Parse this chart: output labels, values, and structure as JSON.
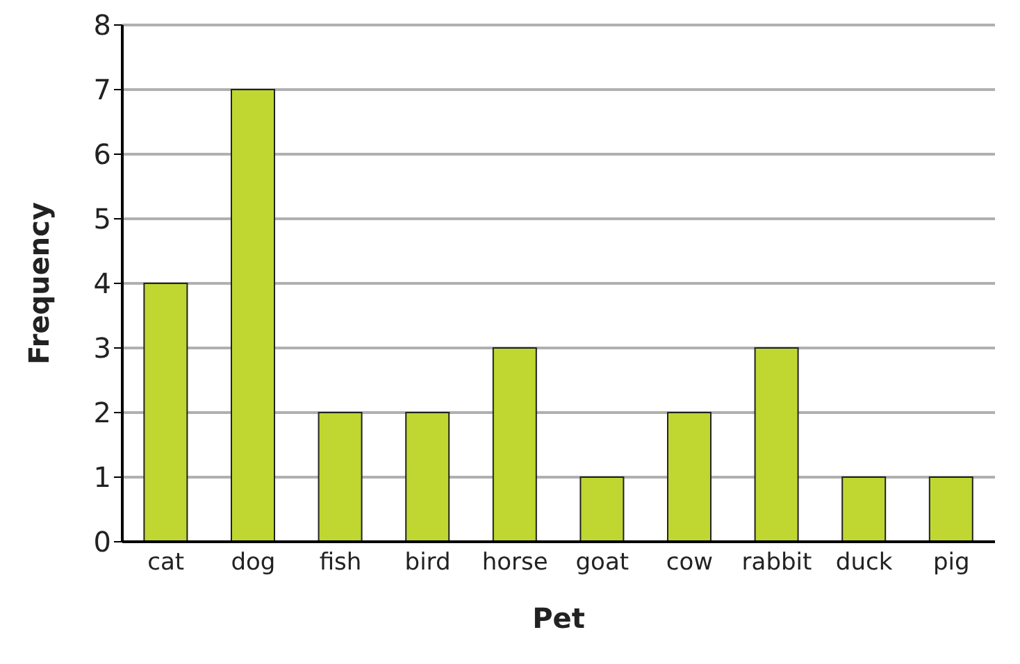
{
  "chart_data": {
    "type": "bar",
    "xlabel": "Pet",
    "ylabel": "Frequency",
    "categories": [
      "cat",
      "dog",
      "fish",
      "bird",
      "horse",
      "goat",
      "cow",
      "rabbit",
      "duck",
      "pig"
    ],
    "values": [
      4,
      7,
      2,
      2,
      3,
      1,
      2,
      3,
      1,
      1
    ],
    "color": "#bfd730",
    "ylim": [
      0,
      8
    ],
    "yticks": [
      0,
      1,
      2,
      3,
      4,
      5,
      6,
      7,
      8
    ],
    "grid": "y"
  }
}
